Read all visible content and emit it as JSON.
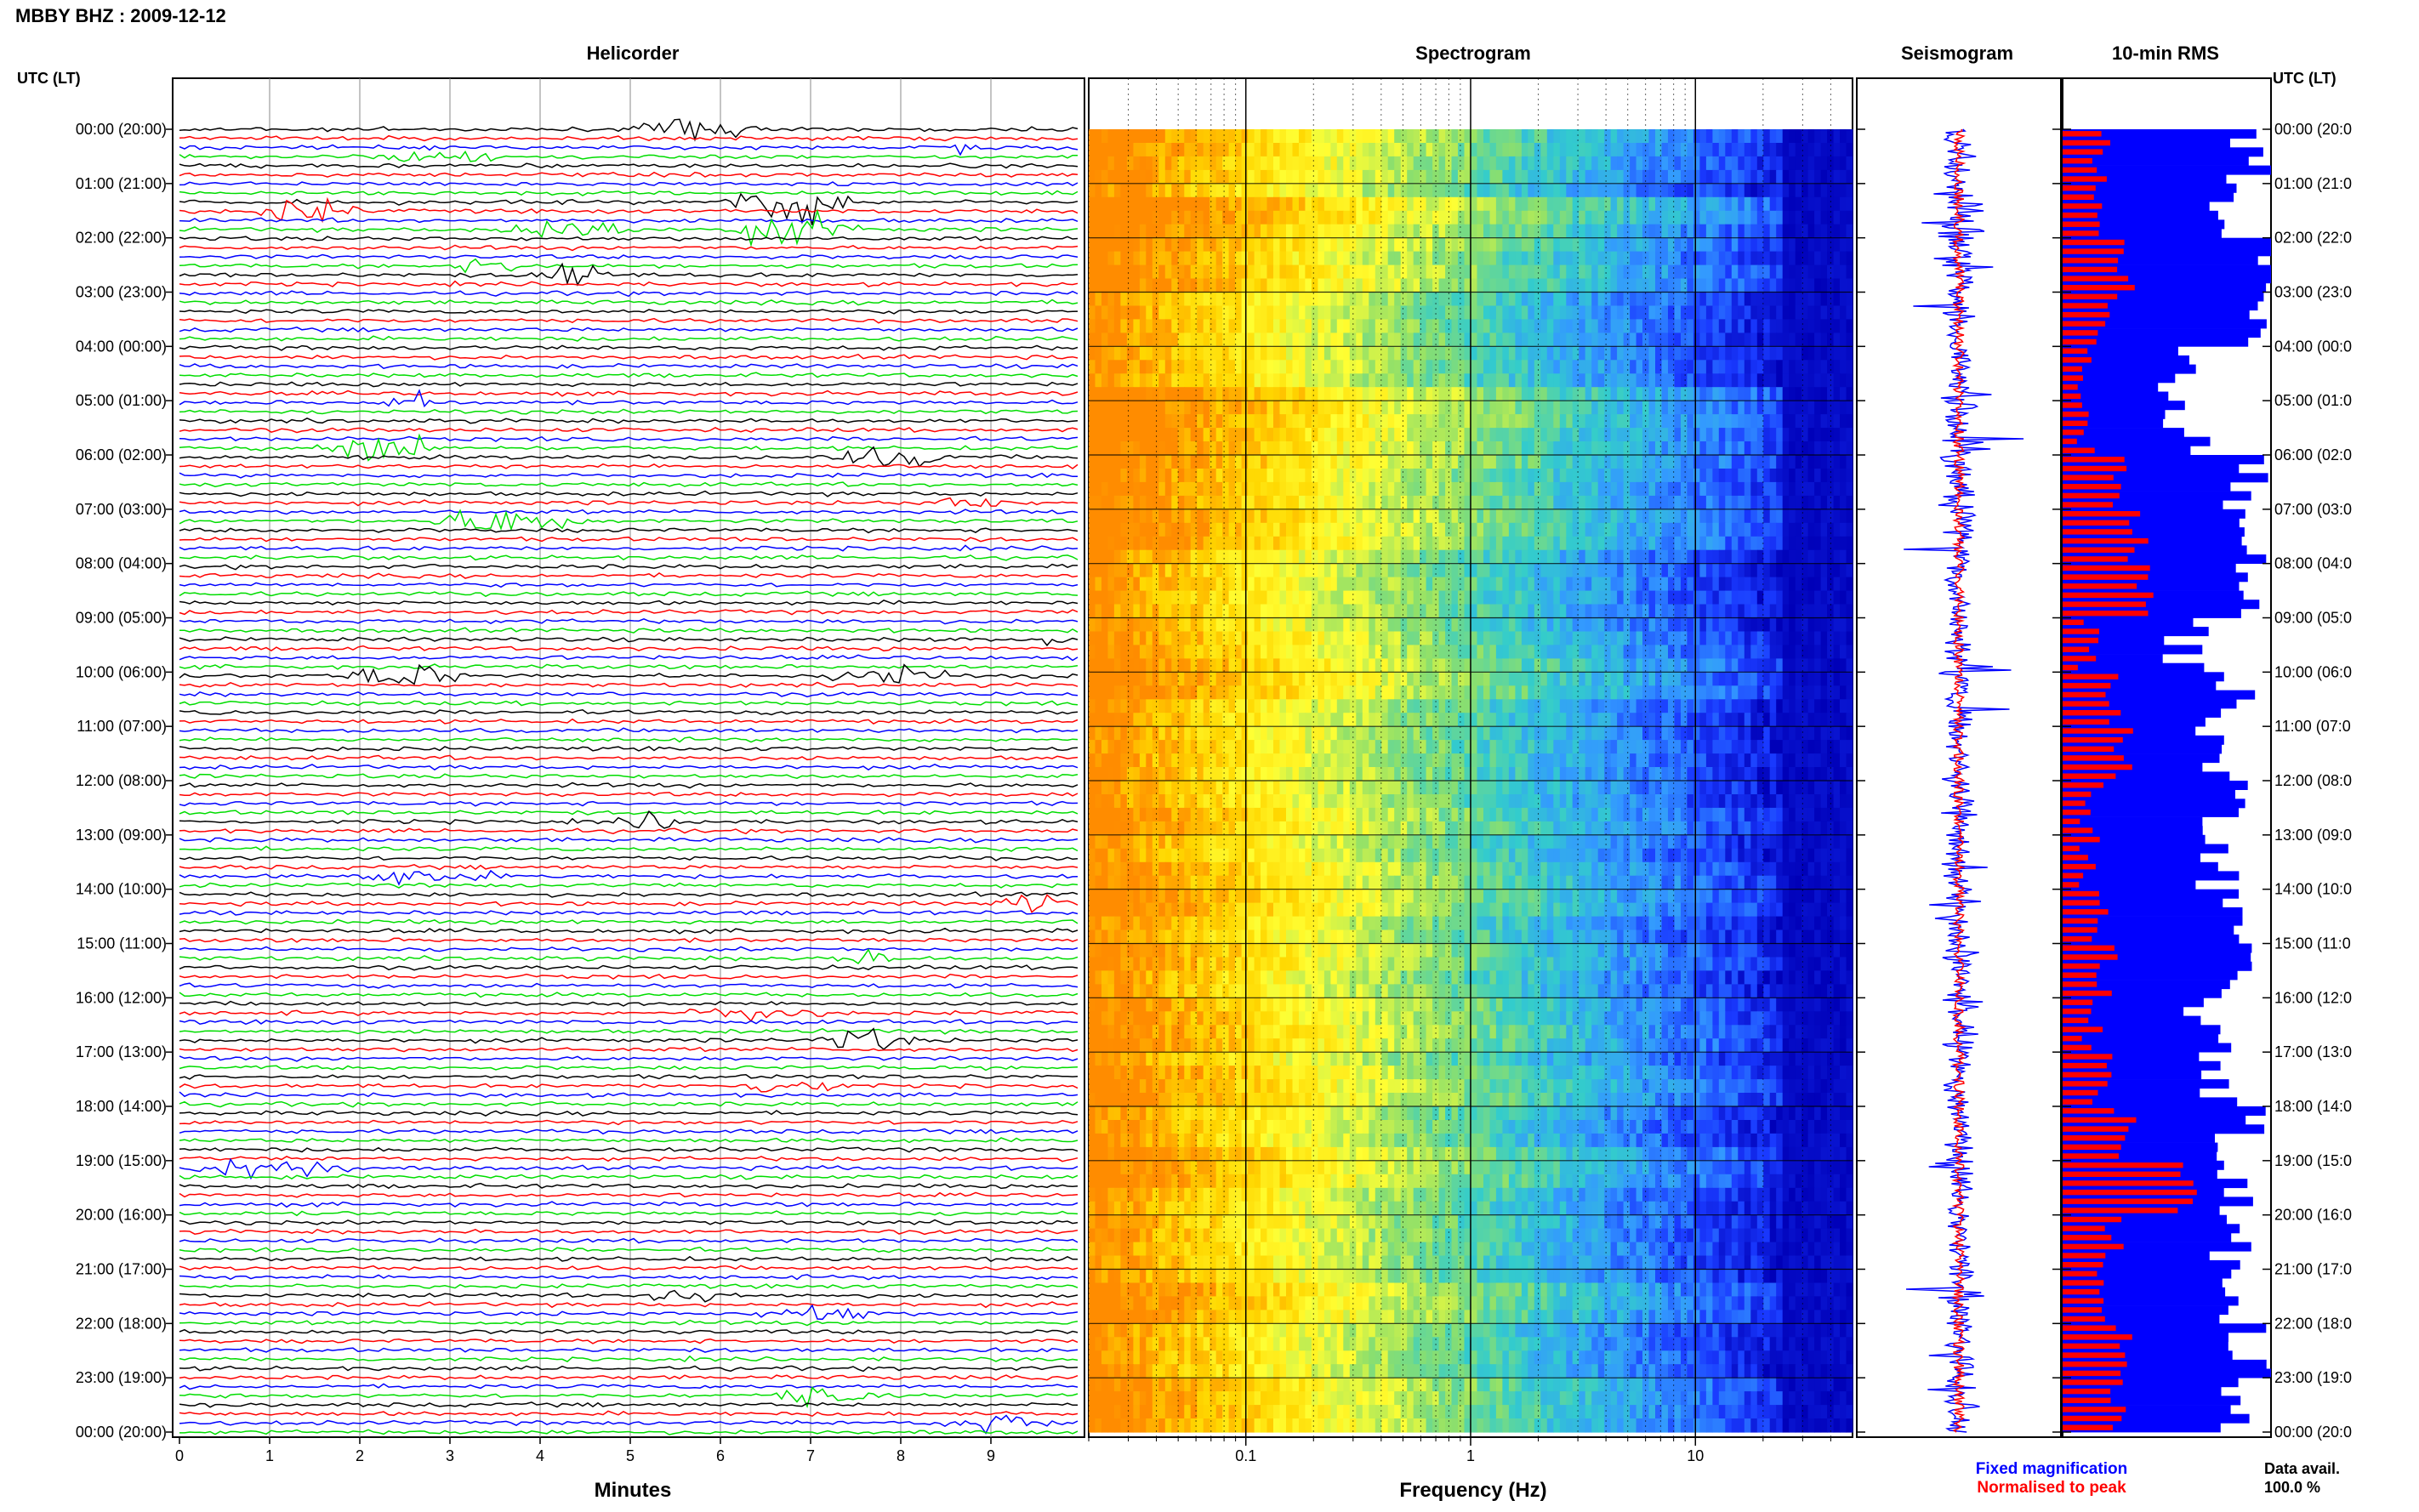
{
  "page": {
    "station_title": "MBBY BHZ : 2009-12-12",
    "utc_label": "UTC (LT)"
  },
  "panels": {
    "helicorder": "Helicorder",
    "spectrogram": "Spectrogram",
    "seismogram": "Seismogram",
    "rms": "10-min RMS"
  },
  "time_labels": [
    "00:00 (20:00)",
    "01:00 (21:00)",
    "02:00 (22:00)",
    "03:00 (23:00)",
    "04:00 (00:00)",
    "05:00 (01:00)",
    "06:00 (02:00)",
    "07:00 (03:00)",
    "08:00 (04:00)",
    "09:00 (05:00)",
    "10:00 (06:00)",
    "11:00 (07:00)",
    "12:00 (08:00)",
    "13:00 (09:00)",
    "14:00 (10:00)",
    "15:00 (11:00)",
    "16:00 (12:00)",
    "17:00 (13:00)",
    "18:00 (14:00)",
    "19:00 (15:00)",
    "20:00 (16:00)",
    "21:00 (17:00)",
    "22:00 (18:00)",
    "23:00 (19:00)",
    "00:00 (20:00)"
  ],
  "right_time_labels": [
    "00:00 (20:0",
    "01:00 (21:0",
    "02:00 (22:0",
    "03:00 (23:0",
    "04:00 (00:0",
    "05:00 (01:0",
    "06:00 (02:0",
    "07:00 (03:0",
    "08:00 (04:0",
    "09:00 (05:0",
    "10:00 (06:0",
    "11:00 (07:0",
    "12:00 (08:0",
    "13:00 (09:0",
    "14:00 (10:0",
    "15:00 (11:0",
    "16:00 (12:0",
    "17:00 (13:0",
    "18:00 (14:0",
    "19:00 (15:0",
    "20:00 (16:0",
    "21:00 (17:0",
    "22:00 (18:0",
    "23:00 (19:0",
    "00:00 (20:0"
  ],
  "legend": {
    "fixed": "Fixed magnification",
    "fixed_color": "#0000ff",
    "normalised": "Normalised to peak",
    "normalised_color": "#ff0000",
    "data_avail_label": "Data avail.",
    "data_avail_value": "100.0 %"
  },
  "chart_data": [
    {
      "type": "line",
      "panel": "Helicorder",
      "title": "Helicorder",
      "xlabel": "Minutes",
      "x_ticks": [
        "0",
        "1",
        "2",
        "3",
        "4",
        "5",
        "6",
        "7",
        "8",
        "9"
      ],
      "xlim": [
        0,
        10
      ],
      "trace_colors": [
        "#000000",
        "#ff0000",
        "#0000ff",
        "#00dd00"
      ],
      "rows": 144,
      "events": [
        {
          "hour": 0.0,
          "start_min": 5.0,
          "end_min": 6.4,
          "amp": 2.2
        },
        {
          "hour": 0.3,
          "start_min": 8.5,
          "end_min": 8.9,
          "amp": 1.6
        },
        {
          "hour": 0.5,
          "start_min": 2.3,
          "end_min": 3.6,
          "amp": 1.5
        },
        {
          "hour": 1.3,
          "start_min": 6.0,
          "end_min": 7.6,
          "amp": 5.0
        },
        {
          "hour": 1.5,
          "start_min": 0.8,
          "end_min": 2.0,
          "amp": 2.5
        },
        {
          "hour": 1.8,
          "start_min": 3.4,
          "end_min": 5.2,
          "amp": 2.4
        },
        {
          "hour": 1.83,
          "start_min": 6.0,
          "end_min": 7.6,
          "amp": 3.0
        },
        {
          "hour": 2.6,
          "start_min": 3.8,
          "end_min": 4.9,
          "amp": 2.8
        },
        {
          "hour": 2.5,
          "start_min": 3.0,
          "end_min": 4.2,
          "amp": 1.6
        },
        {
          "hour": 5.0,
          "start_min": 2.3,
          "end_min": 2.8,
          "amp": 4.0
        },
        {
          "hour": 5.8,
          "start_min": 1.5,
          "end_min": 3.0,
          "amp": 3.2
        },
        {
          "hour": 6.0,
          "start_min": 7.2,
          "end_min": 8.6,
          "amp": 2.0
        },
        {
          "hour": 6.8,
          "start_min": 8.4,
          "end_min": 9.2,
          "amp": 2.0
        },
        {
          "hour": 7.2,
          "start_min": 2.8,
          "end_min": 4.5,
          "amp": 3.0
        },
        {
          "hour": 9.4,
          "start_min": 9.5,
          "end_min": 9.9,
          "amp": 1.2
        },
        {
          "hour": 10.0,
          "start_min": 1.8,
          "end_min": 3.2,
          "amp": 2.6
        },
        {
          "hour": 10.0,
          "start_min": 7.2,
          "end_min": 8.6,
          "amp": 2.8
        },
        {
          "hour": 12.6,
          "start_min": 4.8,
          "end_min": 5.8,
          "amp": 1.6
        },
        {
          "hour": 13.6,
          "start_min": 1.8,
          "end_min": 3.6,
          "amp": 1.6
        },
        {
          "hour": 14.2,
          "start_min": 9.0,
          "end_min": 9.9,
          "amp": 2.2
        },
        {
          "hour": 15.2,
          "start_min": 7.2,
          "end_min": 8.0,
          "amp": 1.4
        },
        {
          "hour": 16.1,
          "start_min": 5.6,
          "end_min": 7.2,
          "amp": 1.6
        },
        {
          "hour": 16.6,
          "start_min": 7.0,
          "end_min": 8.2,
          "amp": 2.2
        },
        {
          "hour": 17.5,
          "start_min": 6.2,
          "end_min": 7.4,
          "amp": 2.2
        },
        {
          "hour": 19.0,
          "start_min": 0.1,
          "end_min": 2.0,
          "amp": 2.4
        },
        {
          "hour": 21.4,
          "start_min": 5.2,
          "end_min": 6.2,
          "amp": 2.6
        },
        {
          "hour": 21.6,
          "start_min": 6.4,
          "end_min": 7.8,
          "amp": 2.0
        },
        {
          "hour": 23.2,
          "start_min": 6.4,
          "end_min": 7.8,
          "amp": 2.2
        },
        {
          "hour": 23.6,
          "start_min": 8.4,
          "end_min": 9.8,
          "amp": 2.0
        }
      ]
    },
    {
      "type": "heatmap",
      "panel": "Spectrogram",
      "title": "Spectrogram",
      "xlabel": "Frequency (Hz)",
      "x_scale": "log",
      "xlim": [
        0.02,
        50
      ],
      "x_ticks": [
        "0.1",
        "1",
        "10"
      ],
      "ylim_hours": [
        0,
        24
      ],
      "colormap": [
        "#ff8c00",
        "#ffd700",
        "#ffff33",
        "#8fe06a",
        "#33cccc",
        "#3399ff",
        "#1a3aff",
        "#0000b8"
      ]
    },
    {
      "type": "line",
      "panel": "Seismogram",
      "title": "Seismogram",
      "series": [
        {
          "name": "Fixed magnification",
          "color": "#0000ff"
        },
        {
          "name": "Normalised to peak",
          "color": "#ff0000"
        }
      ],
      "ylim_hours": [
        0,
        24
      ]
    },
    {
      "type": "bar",
      "panel": "10-min RMS",
      "title": "10-min RMS",
      "orientation": "horizontal",
      "bins": 144,
      "series": [
        {
          "name": "Fixed magnification",
          "color": "#0000ff",
          "hourly_values": [
            0.88,
            0.72,
            0.95,
            0.9,
            0.52,
            0.6,
            0.88,
            0.95,
            0.9,
            0.6,
            0.8,
            0.72,
            0.78,
            0.74,
            0.8,
            0.82,
            0.7,
            0.76,
            0.85,
            0.82,
            0.8,
            0.76,
            0.9,
            0.88
          ]
        },
        {
          "name": "Normalised to peak",
          "color": "#ff0000",
          "hourly_values": [
            0.2,
            0.18,
            0.32,
            0.22,
            0.1,
            0.12,
            0.3,
            0.36,
            0.4,
            0.12,
            0.22,
            0.3,
            0.14,
            0.12,
            0.16,
            0.22,
            0.14,
            0.2,
            0.3,
            0.6,
            0.24,
            0.16,
            0.3,
            0.26
          ]
        }
      ],
      "xlim": [
        0,
        1
      ]
    }
  ]
}
